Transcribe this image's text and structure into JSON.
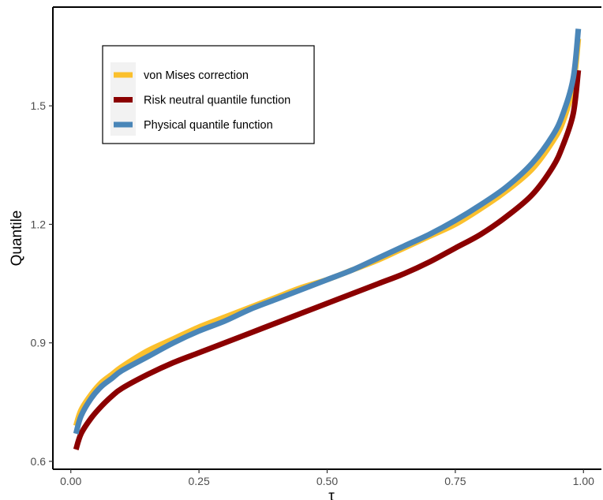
{
  "chart_data": {
    "type": "line",
    "title": "",
    "xlabel": "τ",
    "ylabel": "Quantile",
    "xlim": [
      -0.035,
      1.035
    ],
    "ylim": [
      0.58,
      1.75
    ],
    "x_ticks": [
      0.0,
      0.25,
      0.5,
      0.75,
      1.0
    ],
    "x_tick_labels": [
      "0.00",
      "0.25",
      "0.50",
      "0.75",
      "1.00"
    ],
    "y_ticks": [
      0.6,
      0.9,
      1.2,
      1.5
    ],
    "y_tick_labels": [
      "0.6",
      "0.9",
      "1.2",
      "1.5"
    ],
    "grid": false,
    "legend_position": "top-left",
    "x": [
      0.01,
      0.02,
      0.04,
      0.06,
      0.08,
      0.1,
      0.15,
      0.2,
      0.25,
      0.3,
      0.35,
      0.4,
      0.45,
      0.5,
      0.55,
      0.6,
      0.65,
      0.7,
      0.75,
      0.8,
      0.85,
      0.9,
      0.94,
      0.96,
      0.98,
      0.99
    ],
    "series": [
      {
        "name": "von Mises correction",
        "color": "#FBC02D",
        "values": [
          0.69,
          0.73,
          0.77,
          0.8,
          0.82,
          0.84,
          0.88,
          0.91,
          0.94,
          0.965,
          0.99,
          1.015,
          1.04,
          1.06,
          1.085,
          1.11,
          1.14,
          1.17,
          1.2,
          1.24,
          1.285,
          1.34,
          1.41,
          1.46,
          1.55,
          1.67
        ]
      },
      {
        "name": "Risk neutral quantile function",
        "color": "#8B0000",
        "values": [
          0.63,
          0.67,
          0.71,
          0.74,
          0.765,
          0.785,
          0.82,
          0.85,
          0.875,
          0.9,
          0.925,
          0.95,
          0.975,
          1.0,
          1.025,
          1.05,
          1.075,
          1.105,
          1.14,
          1.175,
          1.22,
          1.275,
          1.345,
          1.4,
          1.48,
          1.59
        ]
      },
      {
        "name": "Physical quantile function",
        "color": "#4A86B8",
        "values": [
          0.67,
          0.715,
          0.76,
          0.79,
          0.81,
          0.83,
          0.865,
          0.9,
          0.93,
          0.955,
          0.985,
          1.01,
          1.035,
          1.06,
          1.085,
          1.115,
          1.145,
          1.175,
          1.21,
          1.25,
          1.295,
          1.355,
          1.425,
          1.48,
          1.57,
          1.695
        ]
      }
    ]
  }
}
